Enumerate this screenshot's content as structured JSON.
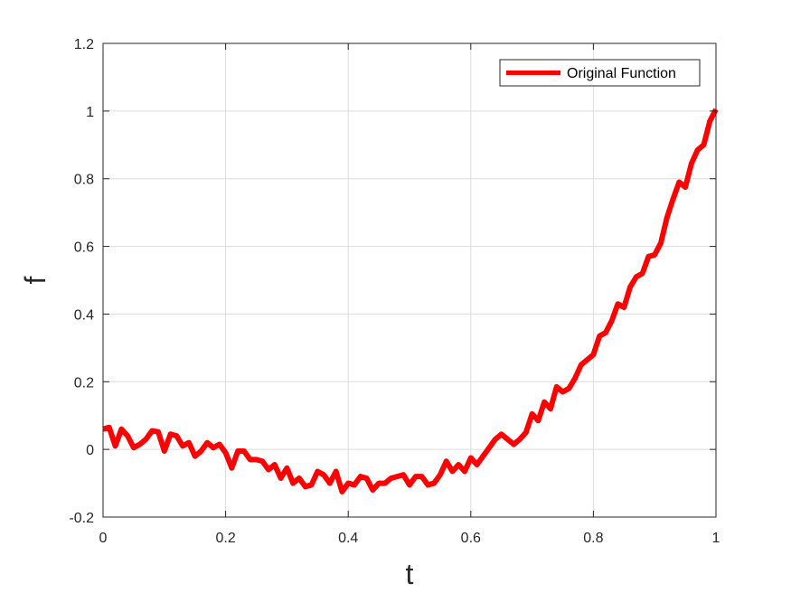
{
  "chart_data": {
    "type": "line",
    "title": "",
    "xlabel": "t",
    "ylabel": "f",
    "xlim": [
      0,
      1
    ],
    "ylim": [
      -0.2,
      1.2
    ],
    "xticks": [
      0,
      0.2,
      0.4,
      0.6,
      0.8,
      1
    ],
    "xtick_labels": [
      "0",
      "0.2",
      "0.4",
      "0.6",
      "0.8",
      "1"
    ],
    "yticks": [
      -0.2,
      0,
      0.2,
      0.4,
      0.6,
      0.8,
      1,
      1.2
    ],
    "ytick_labels": [
      "-0.2",
      "0",
      "0.2",
      "0.4",
      "0.6",
      "0.8",
      "1",
      "1.2"
    ],
    "grid": true,
    "legend_position": "top-right",
    "series": [
      {
        "name": "Original Function",
        "color": "#ff0000",
        "x": [
          0,
          0.01,
          0.02,
          0.03,
          0.04,
          0.05,
          0.06,
          0.07,
          0.08,
          0.09,
          0.1,
          0.11,
          0.12,
          0.13,
          0.14,
          0.15,
          0.16,
          0.17,
          0.18,
          0.19,
          0.2,
          0.21,
          0.22,
          0.23,
          0.24,
          0.25,
          0.26,
          0.27,
          0.28,
          0.29,
          0.3,
          0.31,
          0.32,
          0.33,
          0.34,
          0.35,
          0.36,
          0.37,
          0.38,
          0.39,
          0.4,
          0.41,
          0.42,
          0.43,
          0.44,
          0.45,
          0.46,
          0.47,
          0.48,
          0.49,
          0.5,
          0.51,
          0.52,
          0.53,
          0.54,
          0.55,
          0.56,
          0.57,
          0.58,
          0.59,
          0.6,
          0.61,
          0.62,
          0.63,
          0.64,
          0.65,
          0.66,
          0.67,
          0.68,
          0.69,
          0.7,
          0.71,
          0.72,
          0.73,
          0.74,
          0.75,
          0.76,
          0.77,
          0.78,
          0.79,
          0.8,
          0.81,
          0.82,
          0.83,
          0.84,
          0.85,
          0.86,
          0.87,
          0.88,
          0.89,
          0.9,
          0.91,
          0.92,
          0.93,
          0.94,
          0.95,
          0.96,
          0.97,
          0.98,
          0.99,
          1.0
        ],
        "y": [
          0.06,
          0.065,
          0.01,
          0.06,
          0.04,
          0.005,
          0.015,
          0.03,
          0.055,
          0.052,
          -0.005,
          0.045,
          0.04,
          0.01,
          0.02,
          -0.02,
          -0.005,
          0.02,
          0.005,
          0.015,
          -0.01,
          -0.055,
          -0.005,
          -0.005,
          -0.03,
          -0.03,
          -0.035,
          -0.06,
          -0.045,
          -0.085,
          -0.055,
          -0.1,
          -0.085,
          -0.11,
          -0.105,
          -0.065,
          -0.075,
          -0.1,
          -0.065,
          -0.125,
          -0.1,
          -0.105,
          -0.08,
          -0.085,
          -0.12,
          -0.1,
          -0.1,
          -0.085,
          -0.08,
          -0.075,
          -0.105,
          -0.08,
          -0.08,
          -0.105,
          -0.1,
          -0.075,
          -0.035,
          -0.065,
          -0.045,
          -0.065,
          -0.025,
          -0.045,
          -0.02,
          0.005,
          0.03,
          0.045,
          0.03,
          0.015,
          0.03,
          0.05,
          0.105,
          0.085,
          0.14,
          0.12,
          0.185,
          0.17,
          0.18,
          0.21,
          0.25,
          0.265,
          0.28,
          0.335,
          0.345,
          0.38,
          0.43,
          0.42,
          0.48,
          0.51,
          0.52,
          0.57,
          0.575,
          0.61,
          0.685,
          0.74,
          0.79,
          0.775,
          0.845,
          0.885,
          0.9,
          0.97,
          1.005
        ]
      }
    ]
  }
}
